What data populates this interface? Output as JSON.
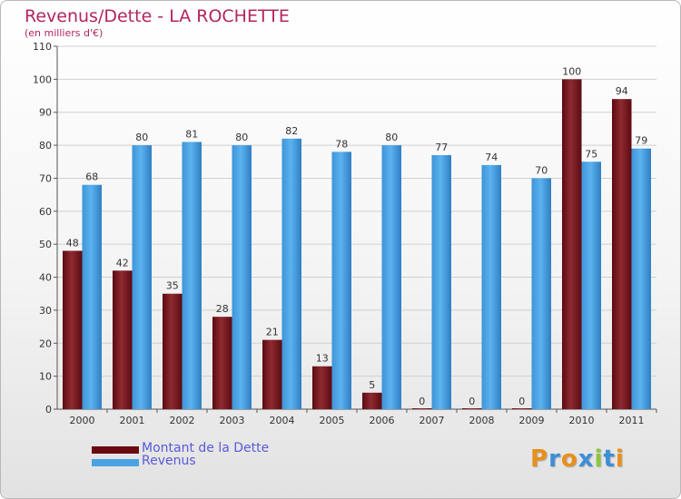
{
  "title": "Revenus/Dette - LA ROCHETTE",
  "subtitle": "(en milliers d'€)",
  "colors": {
    "dette": "#7a1a22",
    "revenus": "#4ca3e3",
    "title": "#b3245f",
    "legend_text": "#5a5ad8"
  },
  "legend": [
    {
      "label": "Montant de la Dette",
      "color": "#6a0a10"
    },
    {
      "label": "Revenus",
      "color": "#4ca3e3"
    }
  ],
  "logo": {
    "letters": [
      "P",
      "r",
      "o",
      "x",
      "i",
      "t",
      "i"
    ],
    "colors": [
      "#e8901a",
      "#3b8fd8",
      "#e8901a",
      "#3b8fd8",
      "#8cc63f",
      "#3b8fd8",
      "#e8901a"
    ]
  },
  "chart_data": {
    "type": "bar",
    "title": "Revenus/Dette - LA ROCHETTE",
    "subtitle": "(en milliers d'€)",
    "categories": [
      "2000",
      "2001",
      "2002",
      "2003",
      "2004",
      "2005",
      "2006",
      "2007",
      "2008",
      "2009",
      "2010",
      "2011"
    ],
    "series": [
      {
        "name": "Montant de la Dette",
        "values": [
          48,
          42,
          35,
          28,
          21,
          13,
          5,
          0,
          0,
          0,
          100,
          94
        ]
      },
      {
        "name": "Revenus",
        "values": [
          68,
          80,
          81,
          80,
          82,
          78,
          80,
          77,
          74,
          70,
          75,
          79
        ]
      }
    ],
    "ylim": [
      0,
      110
    ],
    "yticks": [
      0,
      10,
      20,
      30,
      40,
      50,
      60,
      70,
      80,
      90,
      100,
      110
    ],
    "grid": true,
    "legend_position": "bottom-left"
  }
}
